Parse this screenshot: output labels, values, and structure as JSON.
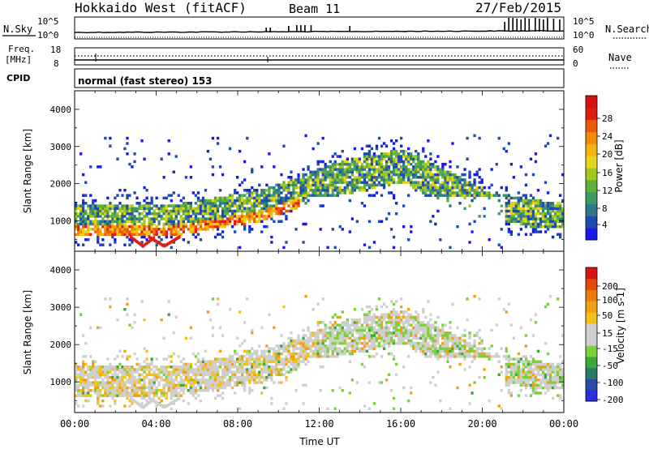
{
  "header": {
    "station": "Hokkaido West (fitACF)",
    "beam": "Beam 11",
    "date": "27/Feb/2015"
  },
  "nsky_panel": {
    "left_label": "N.Sky",
    "right_label": "N.Search",
    "left_ticks": [
      "10^5",
      "10^0"
    ],
    "right_ticks": [
      "10^5",
      "10^0"
    ]
  },
  "freq_panel": {
    "left_label_line1": "Freq.",
    "left_label_line2": "[MHz]",
    "right_label": "Nave",
    "left_ticks": [
      "18",
      "8"
    ],
    "right_ticks": [
      "60",
      "0"
    ]
  },
  "cpid": {
    "label": "CPID",
    "value": "normal (fast stereo) 153"
  },
  "chart_data": [
    {
      "type": "heatmap",
      "name": "power",
      "ylabel": "Slant Range [km]",
      "ylim": [
        180,
        4500
      ],
      "yticks": [
        "1000",
        "2000",
        "3000",
        "4000"
      ],
      "ytick_values": [
        1000,
        2000,
        3000,
        4000
      ],
      "xlim_hours": [
        0,
        24
      ],
      "colorbar": {
        "label": "Power [dB]",
        "ticks": [
          "28",
          "24",
          "20",
          "16",
          "12",
          "8",
          "4"
        ],
        "tick_values": [
          28,
          24,
          20,
          16,
          12,
          8,
          4
        ],
        "range": [
          0,
          30
        ],
        "colors": [
          "#1a1ae8",
          "#1f4ab0",
          "#2e7a8a",
          "#3f9a62",
          "#62b03a",
          "#a2c81e",
          "#e6d21a",
          "#f5b40c",
          "#f58a0a",
          "#ec5a08",
          "#e01e10",
          "#d60f0f"
        ]
      },
      "echo_bands": [
        {
          "t0": 0.0,
          "t1": 5.0,
          "r0": 600,
          "r1": 1450,
          "level": "mixed"
        },
        {
          "t0": 5.0,
          "t1": 9.0,
          "r0": 700,
          "r1": 1500,
          "level": "mixed"
        },
        {
          "t0": 9.0,
          "t1": 12.5,
          "r0": 1000,
          "r1": 1800,
          "level": "mixed"
        },
        {
          "t0": 12.5,
          "t1": 16.0,
          "r0": 1800,
          "r1": 2700,
          "level": "mixed"
        },
        {
          "t0": 16.0,
          "t1": 20.0,
          "r0": 1700,
          "r1": 2600,
          "level": "mixed"
        },
        {
          "t0": 20.0,
          "t1": 24.0,
          "r0": 700,
          "r1": 1600,
          "level": "mixed"
        }
      ]
    },
    {
      "type": "heatmap",
      "name": "velocity",
      "ylabel": "Slant Range [km]",
      "xlabel": "Time UT",
      "ylim": [
        180,
        4500
      ],
      "yticks": [
        "1000",
        "2000",
        "3000",
        "4000"
      ],
      "ytick_values": [
        1000,
        2000,
        3000,
        4000
      ],
      "xlim_hours": [
        0,
        24
      ],
      "xticks": [
        "00:00",
        "04:00",
        "08:00",
        "12:00",
        "16:00",
        "20:00",
        "00:00"
      ],
      "xtick_values": [
        0,
        4,
        8,
        12,
        16,
        20,
        24
      ],
      "colorbar": {
        "label": "Velocity [m s-1]",
        "ticks": [
          "200",
          "100",
          "50",
          "15",
          "-15",
          "-50",
          "-100",
          "-200"
        ],
        "tick_values": [
          200,
          100,
          50,
          15,
          -15,
          -50,
          -100,
          -200
        ],
        "colors": [
          "#2c2ce0",
          "#2a4aa8",
          "#2a7a6a",
          "#3aa83a",
          "#7ad23a",
          "#cfcfcf",
          "#cfcfcf",
          "#f2c21a",
          "#f0a012",
          "#ec7a0a",
          "#e24a0a",
          "#d61414"
        ]
      }
    }
  ]
}
